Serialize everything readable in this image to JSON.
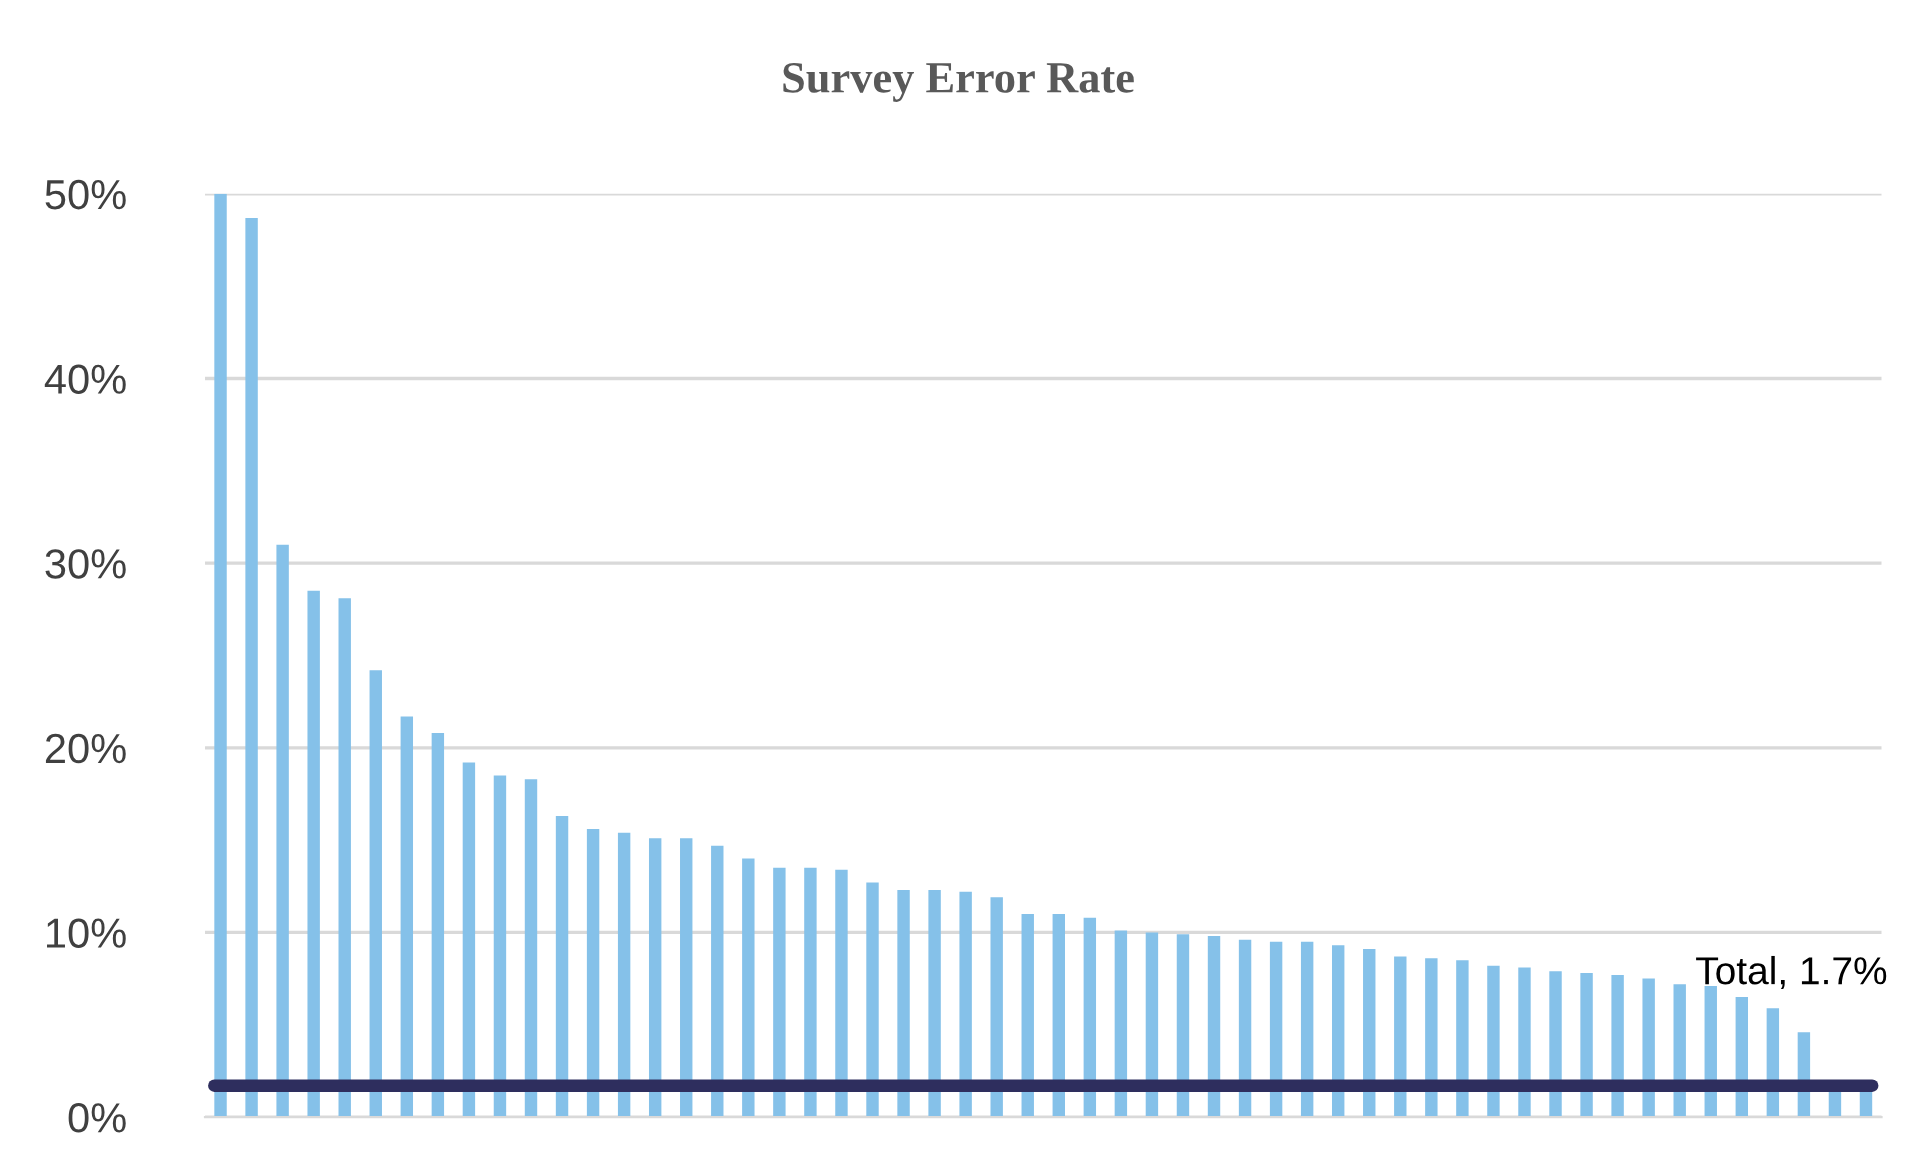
{
  "chart_data": {
    "type": "bar",
    "title": "Survey Error Rate",
    "categories": [
      null,
      null,
      null,
      null,
      null,
      null,
      null,
      null,
      null,
      null,
      null,
      null,
      null,
      null,
      null,
      null,
      null,
      null,
      null,
      null,
      null,
      null,
      null,
      null,
      null,
      null,
      null,
      null,
      null,
      null,
      null,
      null,
      null,
      null,
      null,
      null,
      null,
      null,
      null,
      null,
      null,
      null,
      null,
      null,
      null,
      null,
      null,
      null,
      null,
      null,
      null,
      null,
      null,
      null
    ],
    "values": [
      50.0,
      48.7,
      31.0,
      28.5,
      28.1,
      24.2,
      21.7,
      20.8,
      19.2,
      18.5,
      18.3,
      16.3,
      15.6,
      15.4,
      15.1,
      15.1,
      14.7,
      14.0,
      13.5,
      13.5,
      13.4,
      12.7,
      12.3,
      12.3,
      12.2,
      11.9,
      11.0,
      11.0,
      10.8,
      10.1,
      10.0,
      9.9,
      9.8,
      9.6,
      9.5,
      9.5,
      9.3,
      9.1,
      8.7,
      8.6,
      8.5,
      8.2,
      8.1,
      7.9,
      7.8,
      7.7,
      7.5,
      7.2,
      7.1,
      6.5,
      5.9,
      4.6,
      1.6,
      1.6
    ],
    "color": "#85c1e9",
    "ylim": [
      0,
      50
    ],
    "yticks": [
      {
        "value": 0,
        "label": "0%"
      },
      {
        "value": 10,
        "label": "10%"
      },
      {
        "value": 20,
        "label": "20%"
      },
      {
        "value": 30,
        "label": "30%"
      },
      {
        "value": 40,
        "label": "40%"
      },
      {
        "value": 50,
        "label": "50%"
      }
    ],
    "grid": "y",
    "ref_lines": [
      {
        "axis": "y",
        "value": 1.7,
        "label": "Total, 1.7%",
        "color": "#2e2e5e",
        "line_style": "solid"
      }
    ]
  }
}
